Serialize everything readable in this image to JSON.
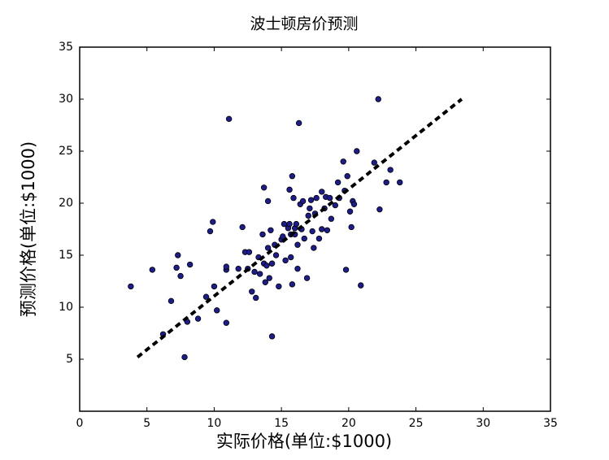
{
  "chart_data": {
    "type": "scatter",
    "title": "波士顿房价预测",
    "x_label": "实际价格(单位:$1000)",
    "y_label": "预测价格(单位:$1000)",
    "color": "#1c1c8f",
    "x": [
      3.8,
      5.4,
      6.2,
      6.8,
      7.2,
      7.3,
      7.5,
      7.8,
      8,
      8.2,
      8.8,
      9.4,
      9.7,
      9.9,
      10,
      10.2,
      10.9,
      10.9,
      10.9,
      11.1,
      11.8,
      12.1,
      12.3,
      12.5,
      12.6,
      12.8,
      13,
      13.1,
      13.3,
      13.4,
      13.6,
      13.7,
      13.7,
      13.8,
      13.9,
      14,
      14,
      14.1,
      14.2,
      14.3,
      14.3,
      14.5,
      14.6,
      14.8,
      15,
      15.1,
      15.2,
      15.3,
      15.5,
      15.6,
      15.6,
      15.7,
      15.7,
      15.8,
      15.8,
      15.9,
      16,
      16,
      16.1,
      16.2,
      16.2,
      16.3,
      16.4,
      16.5,
      16.6,
      16.7,
      16.9,
      17,
      17.1,
      17.2,
      17.3,
      17.4,
      17.5,
      17.6,
      17.8,
      18,
      18,
      18.2,
      18.3,
      18.4,
      18.6,
      18.7,
      19,
      19.2,
      19.3,
      19.6,
      19.7,
      19.8,
      19.9,
      20.1,
      20.2,
      20.3,
      20.4,
      20.6,
      20.9,
      21.9,
      22.2,
      22.3,
      22.8,
      23.1,
      23.8
    ],
    "y": [
      12,
      13.6,
      7.4,
      10.6,
      13.8,
      15,
      13,
      5.2,
      8.6,
      14.1,
      8.9,
      11,
      17.3,
      18.2,
      12,
      9.7,
      13.6,
      13.9,
      8.5,
      28.1,
      13.7,
      17.7,
      15.3,
      13.7,
      15.3,
      11.5,
      13.4,
      10.9,
      14.8,
      13.2,
      17,
      14.2,
      21.5,
      12.4,
      14,
      20.2,
      15.7,
      12.8,
      17.4,
      7.2,
      14.2,
      16,
      15,
      12,
      16.5,
      16.8,
      18,
      14.5,
      17.6,
      18,
      21.3,
      17,
      14.8,
      12.2,
      22.6,
      20.5,
      17.6,
      17,
      18,
      16,
      13.7,
      27.7,
      19.9,
      17.5,
      20.2,
      16.6,
      12.8,
      18.8,
      19.5,
      20.3,
      17.3,
      15.7,
      19,
      20.5,
      16.6,
      17.5,
      21.1,
      19.5,
      20.6,
      17.4,
      20.5,
      18.5,
      19.8,
      22,
      20.5,
      24,
      21.2,
      13.6,
      22.6,
      19.2,
      17.7,
      20.2,
      19.9,
      25,
      12.1,
      23.9,
      30,
      19.4,
      22,
      23.2,
      22
    ],
    "line": {
      "x": [
        4.3,
        28.4
      ],
      "y": [
        5.2,
        30
      ],
      "color": "#000000"
    },
    "xlim": [
      0,
      35
    ],
    "ylim": [
      0,
      35
    ],
    "xticks": [
      0,
      5,
      10,
      15,
      20,
      25,
      30,
      35
    ],
    "yticks": [
      5,
      10,
      15,
      20,
      25,
      30,
      35
    ]
  }
}
